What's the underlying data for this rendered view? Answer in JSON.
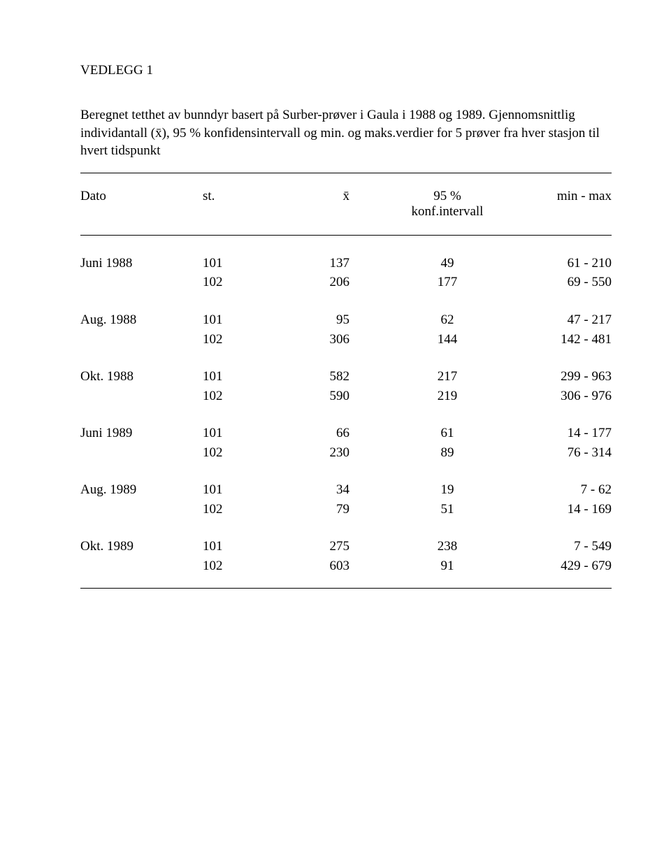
{
  "title": "VEDLEGG 1",
  "description": "Beregnet tetthet av bunndyr basert på Surber-prøver i Gaula i 1988 og 1989. Gjennomsnittlig individantall (x̄), 95 % konfidensintervall og min. og maks.verdier for 5 prøver fra hver stasjon til hvert tidspunkt",
  "table": {
    "headers": {
      "dato": "Dato",
      "st": "st.",
      "xbar": "x̄",
      "conf_top": "95 %",
      "conf_sub": "konf.intervall",
      "minmax": "min - max"
    },
    "groups": [
      {
        "date": "Juni 1988",
        "rows": [
          {
            "st": "101",
            "x": "137",
            "conf": "49",
            "mm": "61 - 210"
          },
          {
            "st": "102",
            "x": "206",
            "conf": "177",
            "mm": "69 - 550"
          }
        ]
      },
      {
        "date": "Aug. 1988",
        "rows": [
          {
            "st": "101",
            "x": "95",
            "conf": "62",
            "mm": "47 - 217"
          },
          {
            "st": "102",
            "x": "306",
            "conf": "144",
            "mm": "142 - 481"
          }
        ]
      },
      {
        "date": "Okt. 1988",
        "rows": [
          {
            "st": "101",
            "x": "582",
            "conf": "217",
            "mm": "299 - 963"
          },
          {
            "st": "102",
            "x": "590",
            "conf": "219",
            "mm": "306 - 976"
          }
        ]
      },
      {
        "date": "Juni 1989",
        "rows": [
          {
            "st": "101",
            "x": "66",
            "conf": "61",
            "mm": "14 - 177"
          },
          {
            "st": "102",
            "x": "230",
            "conf": "89",
            "mm": "76 - 314"
          }
        ]
      },
      {
        "date": "Aug. 1989",
        "rows": [
          {
            "st": "101",
            "x": "34",
            "conf": "19",
            "mm": "7 -  62"
          },
          {
            "st": "102",
            "x": "79",
            "conf": "51",
            "mm": "14 - 169"
          }
        ]
      },
      {
        "date": "Okt. 1989",
        "rows": [
          {
            "st": "101",
            "x": "275",
            "conf": "238",
            "mm": "7 - 549"
          },
          {
            "st": "102",
            "x": "603",
            "conf": "91",
            "mm": "429 - 679"
          }
        ]
      }
    ]
  }
}
